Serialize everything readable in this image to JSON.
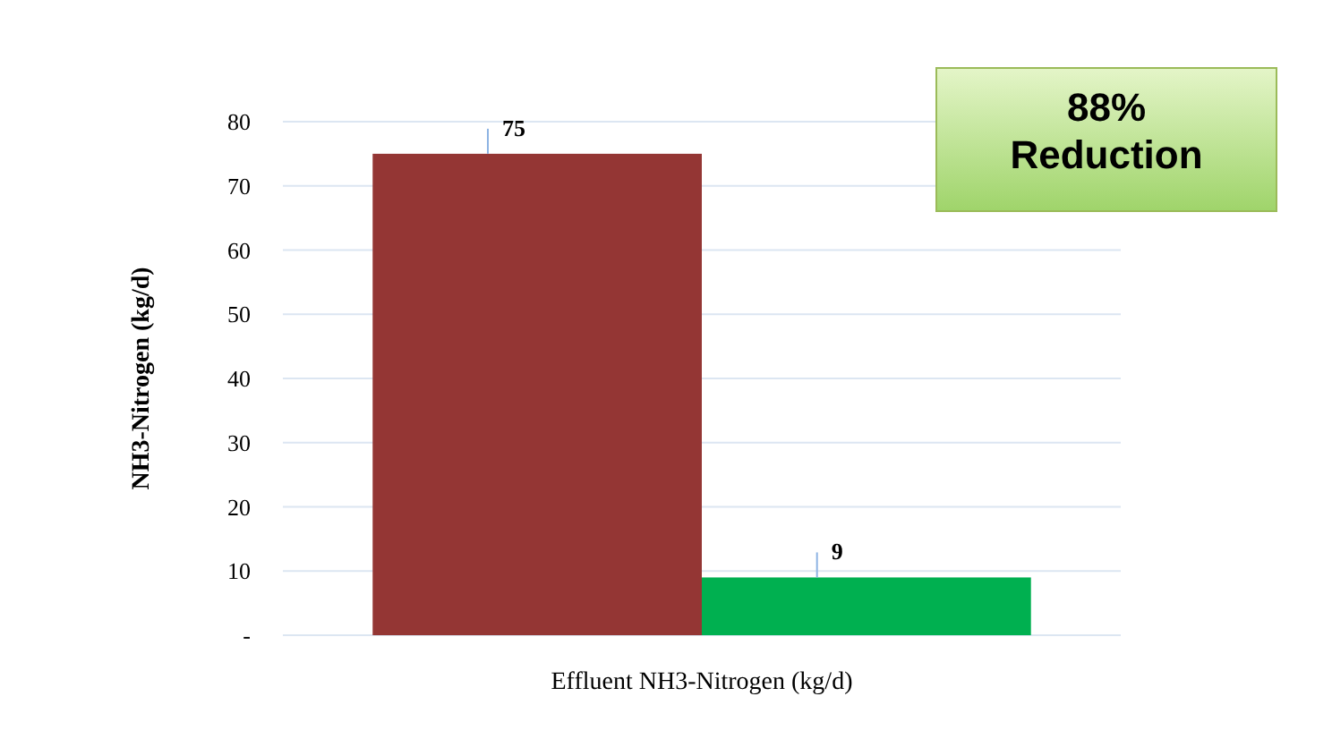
{
  "chart_data": {
    "type": "bar",
    "categories": [
      "Effluent NH3-Nitrogen (kg/d)"
    ],
    "ylabel": "NH3-Nitrogen (kg/d)",
    "series": [
      {
        "color": "#943634",
        "values": [
          75
        ]
      },
      {
        "color": "#00b050",
        "values": [
          9
        ]
      }
    ],
    "ylim": [
      0,
      80
    ],
    "yticks": [
      {
        "value": 0,
        "label": "-"
      },
      10,
      20,
      30,
      40,
      50,
      60,
      70,
      80
    ],
    "grid": "y",
    "data_labels": true,
    "annotations": [
      "88% Reduction"
    ]
  }
}
